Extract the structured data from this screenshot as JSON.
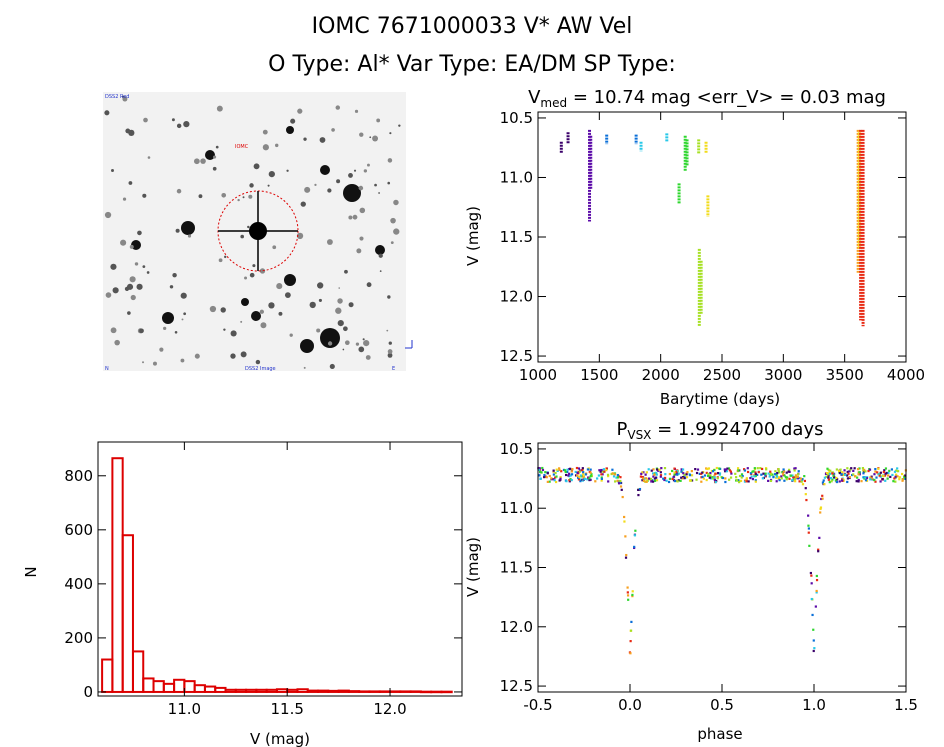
{
  "header": {
    "title": "IOMC 7671000033   V* AW Vel",
    "subtitle": "O Type: Al*  Var Type: EA/DM  SP Type:"
  },
  "finder": {
    "top_label": "DSS2 Red",
    "star_label": "IOMC",
    "bottom_left": "N",
    "bottom_center": "DSS2 Image",
    "bottom_right": "E"
  },
  "colors": {
    "hist": "#dd0000",
    "circle": "#dd0000",
    "seasons": [
      "#3a006a",
      "#5b0aa8",
      "#0a6fd8",
      "#28c8e8",
      "#2ed62e",
      "#a6e024",
      "#f2dc1a",
      "#f7a020",
      "#e82a14"
    ]
  },
  "chart_data": [
    {
      "type": "scatter",
      "id": "lightcurve",
      "title_main": "V",
      "title_sub": "med",
      "title_rest": " = 10.74 mag <err_V> = 0.03 mag",
      "xlabel": "Barytime (days)",
      "ylabel": "V (mag)",
      "xlim": [
        1000,
        4000
      ],
      "ylim": [
        12.55,
        10.45
      ],
      "xticks": [
        1000,
        1500,
        2000,
        2500,
        3000,
        3500,
        4000
      ],
      "yticks": [
        10.5,
        11.0,
        11.5,
        12.0,
        12.5
      ],
      "segments": [
        {
          "x": 1190,
          "y1": 10.7,
          "y2": 10.8,
          "c": 0
        },
        {
          "x": 1245,
          "y1": 10.62,
          "y2": 10.72,
          "c": 0
        },
        {
          "x": 1420,
          "y1": 10.6,
          "y2": 11.37,
          "c": 1
        },
        {
          "x": 1430,
          "y1": 10.65,
          "y2": 11.1,
          "c": 1
        },
        {
          "x": 1560,
          "y1": 10.64,
          "y2": 10.72,
          "c": 2
        },
        {
          "x": 1800,
          "y1": 10.64,
          "y2": 10.72,
          "c": 2
        },
        {
          "x": 1840,
          "y1": 10.7,
          "y2": 10.78,
          "c": 3
        },
        {
          "x": 2050,
          "y1": 10.63,
          "y2": 10.7,
          "c": 3
        },
        {
          "x": 2150,
          "y1": 11.05,
          "y2": 11.22,
          "c": 4
        },
        {
          "x": 2200,
          "y1": 10.65,
          "y2": 10.95,
          "c": 4
        },
        {
          "x": 2215,
          "y1": 10.68,
          "y2": 10.9,
          "c": 4
        },
        {
          "x": 2310,
          "y1": 10.68,
          "y2": 10.8,
          "c": 5
        },
        {
          "x": 2315,
          "y1": 11.6,
          "y2": 12.25,
          "c": 5
        },
        {
          "x": 2330,
          "y1": 11.7,
          "y2": 12.15,
          "c": 5
        },
        {
          "x": 2370,
          "y1": 10.7,
          "y2": 10.8,
          "c": 6
        },
        {
          "x": 2385,
          "y1": 11.15,
          "y2": 11.33,
          "c": 6
        },
        {
          "x": 3610,
          "y1": 10.6,
          "y2": 11.8,
          "c": 7
        },
        {
          "x": 3620,
          "y1": 10.62,
          "y2": 11.6,
          "c": 6
        },
        {
          "x": 3630,
          "y1": 10.6,
          "y2": 12.2,
          "c": 8
        },
        {
          "x": 3650,
          "y1": 10.6,
          "y2": 12.25,
          "c": 8
        }
      ]
    },
    {
      "type": "bar",
      "id": "histogram",
      "xlabel": "V (mag)",
      "ylabel": "N",
      "xlim": [
        10.58,
        12.35
      ],
      "ylim": [
        -15,
        925
      ],
      "xticks": [
        11.0,
        11.5,
        12.0
      ],
      "yticks": [
        0,
        200,
        400,
        600,
        800
      ],
      "bin_width": 0.05,
      "bin_start": 10.6,
      "values": [
        120,
        865,
        580,
        150,
        50,
        40,
        30,
        45,
        40,
        25,
        20,
        15,
        8,
        8,
        8,
        8,
        8,
        10,
        8,
        10,
        5,
        5,
        4,
        5,
        3,
        2,
        2,
        2,
        2,
        2,
        2,
        1,
        1,
        1
      ]
    },
    {
      "type": "scatter",
      "id": "phased",
      "title_main": "P",
      "title_sub": "VSX",
      "title_rest": " = 1.9924700 days",
      "xlabel": "phase",
      "ylabel": "V (mag)",
      "xlim": [
        -0.5,
        1.5
      ],
      "ylim": [
        12.55,
        10.45
      ],
      "xticks": [
        -0.5,
        0.0,
        0.5,
        1.0,
        1.5
      ],
      "yticks": [
        10.5,
        11.0,
        11.5,
        12.0,
        12.5
      ],
      "baseline": 10.72,
      "eclipse_depth": 12.25,
      "eclipse_centers": [
        0.0,
        1.0
      ],
      "eclipse_halfwidth": 0.07
    }
  ]
}
